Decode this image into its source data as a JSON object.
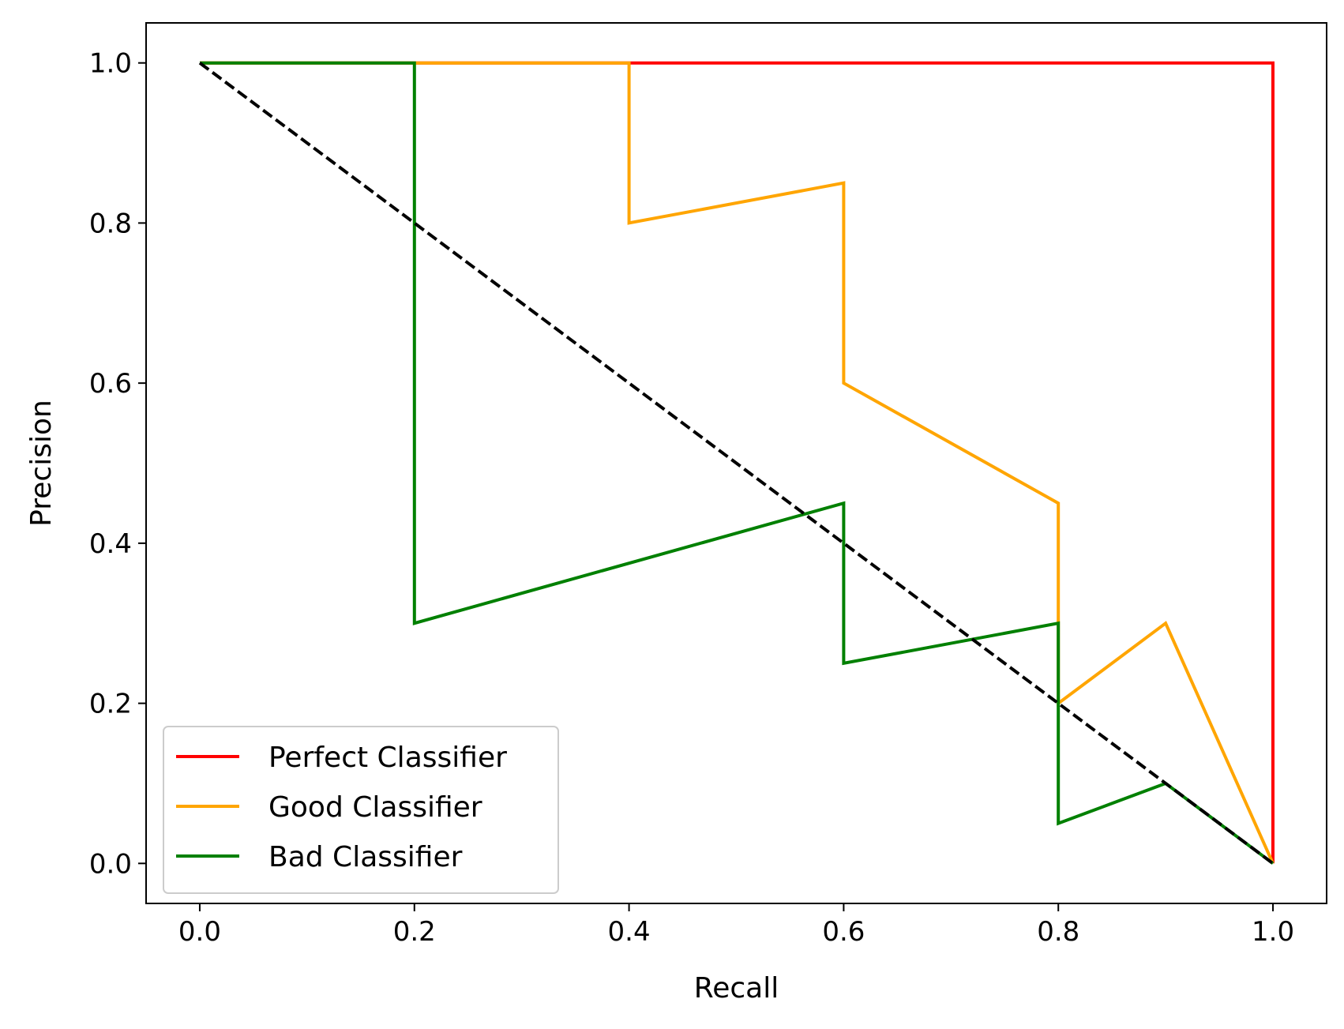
{
  "chart_data": {
    "type": "line",
    "title": "",
    "xlabel": "Recall",
    "ylabel": "Precision",
    "xlim": [
      -0.05,
      1.05
    ],
    "ylim": [
      -0.05,
      1.05
    ],
    "xticks": [
      0.0,
      0.2,
      0.4,
      0.6,
      0.8,
      1.0
    ],
    "yticks": [
      0.0,
      0.2,
      0.4,
      0.6,
      0.8,
      1.0
    ],
    "xtick_labels": [
      "0.0",
      "0.2",
      "0.4",
      "0.6",
      "0.8",
      "1.0"
    ],
    "ytick_labels": [
      "0.0",
      "0.2",
      "0.4",
      "0.6",
      "0.8",
      "1.0"
    ],
    "grid": false,
    "legend_position": "lower-left",
    "series": [
      {
        "name": "Perfect Classifier",
        "color": "#ff0000",
        "style": "solid",
        "x": [
          0.0,
          1.0,
          1.0
        ],
        "y": [
          1.0,
          1.0,
          0.0
        ]
      },
      {
        "name": "Good Classifier",
        "color": "#ffa500",
        "style": "solid",
        "x": [
          0.0,
          0.4,
          0.4,
          0.6,
          0.6,
          0.8,
          0.8,
          0.9,
          1.0
        ],
        "y": [
          1.0,
          1.0,
          0.8,
          0.85,
          0.6,
          0.45,
          0.2,
          0.3,
          0.0
        ]
      },
      {
        "name": "Bad Classifier",
        "color": "#008000",
        "style": "solid",
        "x": [
          0.0,
          0.2,
          0.2,
          0.6,
          0.6,
          0.8,
          0.8,
          0.9,
          1.0
        ],
        "y": [
          1.0,
          1.0,
          0.3,
          0.45,
          0.25,
          0.3,
          0.05,
          0.1,
          0.0
        ]
      },
      {
        "color": "#000000",
        "style": "dashed",
        "x": [
          0.0,
          1.0
        ],
        "y": [
          1.0,
          0.0
        ]
      }
    ]
  }
}
